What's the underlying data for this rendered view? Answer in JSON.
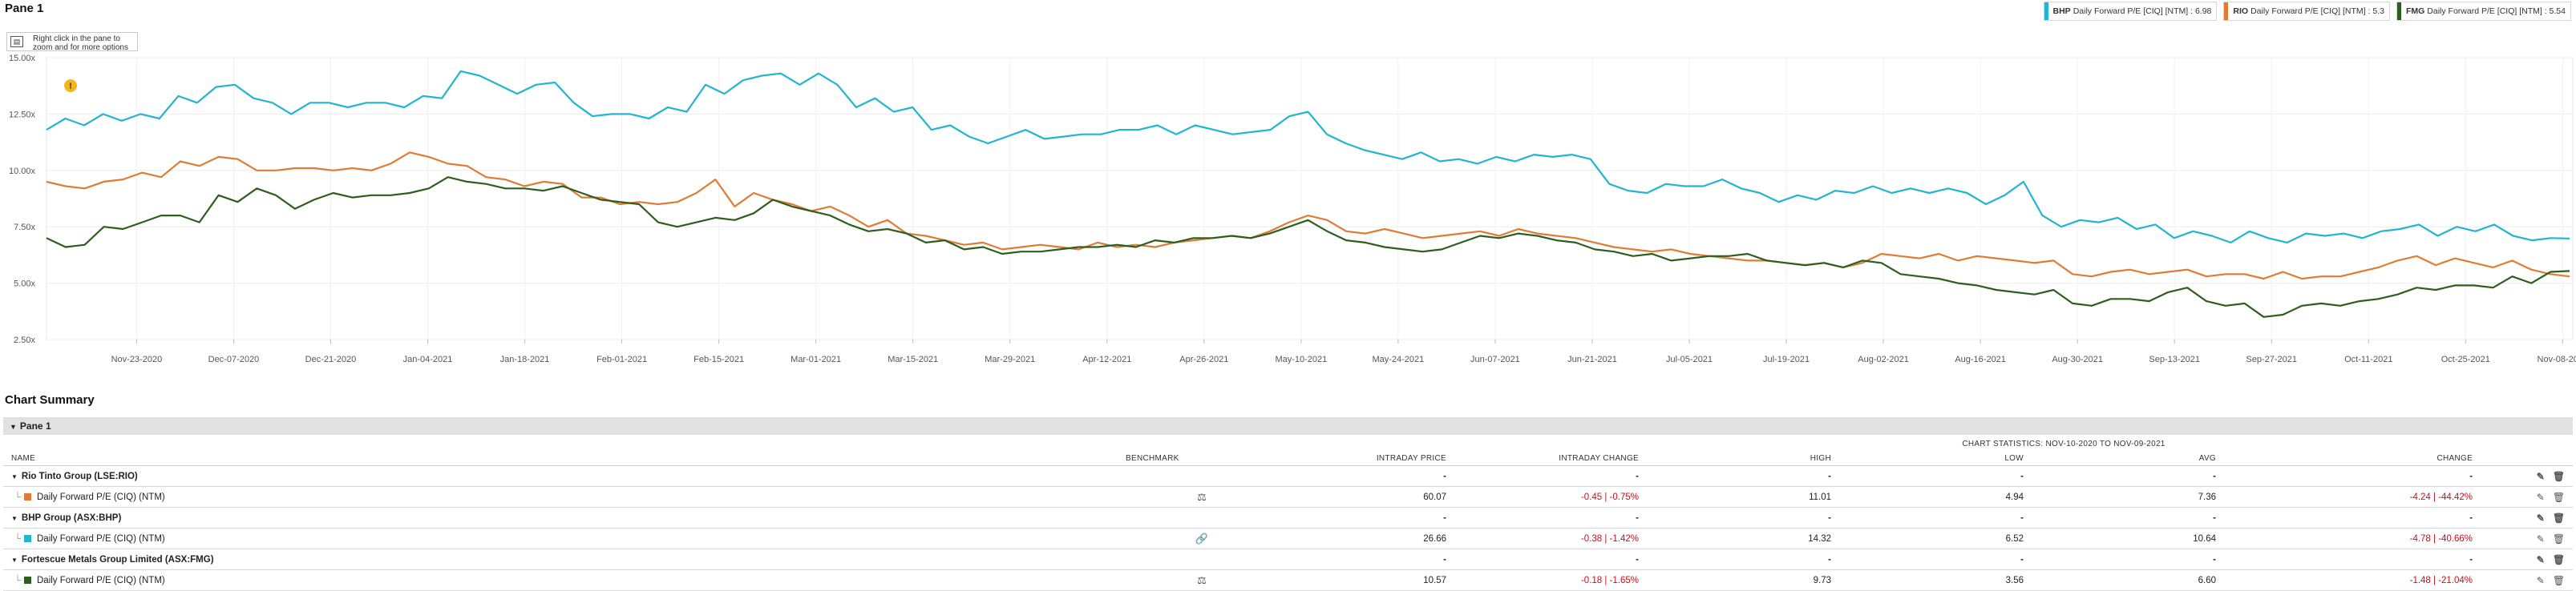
{
  "pane": {
    "title": "Pane 1",
    "hint": "Right click in the pane to zoom and for more options"
  },
  "legend": [
    {
      "ticker": "BHP",
      "label": "Daily Forward P/E [CIQ] [NTM] : 6.98",
      "color": "#22b5d0"
    },
    {
      "ticker": "RIO",
      "label": "Daily Forward P/E [CIQ] [NTM] : 5.3",
      "color": "#e07b34"
    },
    {
      "ticker": "FMG",
      "label": "Daily Forward P/E [CIQ] [NTM] : 5.54",
      "color": "#2d5e1f"
    }
  ],
  "chart_data": {
    "type": "line",
    "ylim": [
      2.5,
      15
    ],
    "yticks": [
      "15.00x",
      "12.50x",
      "10.00x",
      "7.50x",
      "5.00x",
      "2.50x"
    ],
    "ytick_values": [
      15,
      12.5,
      10,
      7.5,
      5,
      2.5
    ],
    "xlabels": [
      "Nov-23-2020",
      "Dec-07-2020",
      "Dec-21-2020",
      "Jan-04-2021",
      "Jan-18-2021",
      "Feb-01-2021",
      "Feb-15-2021",
      "Mar-01-2021",
      "Mar-15-2021",
      "Mar-29-2021",
      "Apr-12-2021",
      "Apr-26-2021",
      "May-10-2021",
      "May-24-2021",
      "Jun-07-2021",
      "Jun-21-2021",
      "Jul-05-2021",
      "Jul-19-2021",
      "Aug-02-2021",
      "Aug-16-2021",
      "Aug-30-2021",
      "Sep-13-2021",
      "Sep-27-2021",
      "Oct-11-2021",
      "Oct-25-2021",
      "Nov-08-2021"
    ],
    "x_start": "Nov-10-2020",
    "x_end": "Nov-09-2021",
    "series": [
      {
        "name": "BHP",
        "color": "#22b5d0",
        "values": [
          11.8,
          12.3,
          12.0,
          12.5,
          12.2,
          12.5,
          12.3,
          13.3,
          13.0,
          13.7,
          13.8,
          13.2,
          13.0,
          12.5,
          13.0,
          13.0,
          12.8,
          13.0,
          13.0,
          12.8,
          13.3,
          13.2,
          14.4,
          14.2,
          13.8,
          13.4,
          13.8,
          13.9,
          13.0,
          12.4,
          12.5,
          12.5,
          12.3,
          12.8,
          12.6,
          13.8,
          13.4,
          14.0,
          14.2,
          14.3,
          13.8,
          14.3,
          13.8,
          12.8,
          13.2,
          12.6,
          12.8,
          11.8,
          12.0,
          11.5,
          11.2,
          11.5,
          11.8,
          11.4,
          11.5,
          11.6,
          11.6,
          11.8,
          11.8,
          12.0,
          11.6,
          12.0,
          11.8,
          11.6,
          11.7,
          11.8,
          12.4,
          12.6,
          11.6,
          11.2,
          10.9,
          10.7,
          10.5,
          10.8,
          10.4,
          10.5,
          10.3,
          10.6,
          10.4,
          10.7,
          10.6,
          10.7,
          10.5,
          9.4,
          9.1,
          9.0,
          9.4,
          9.3,
          9.3,
          9.6,
          9.2,
          9.0,
          8.6,
          8.9,
          8.7,
          9.1,
          9.0,
          9.3,
          9.0,
          9.2,
          9.0,
          9.2,
          9.0,
          8.5,
          8.9,
          9.5,
          8.0,
          7.5,
          7.8,
          7.7,
          7.9,
          7.4,
          7.6,
          7.0,
          7.3,
          7.1,
          6.8,
          7.3,
          7.0,
          6.8,
          7.2,
          7.1,
          7.2,
          7.0,
          7.3,
          7.4,
          7.6,
          7.1,
          7.5,
          7.3,
          7.6,
          7.1,
          6.9,
          7.0,
          6.98
        ]
      },
      {
        "name": "RIO",
        "color": "#e07b34",
        "values": [
          9.5,
          9.3,
          9.2,
          9.5,
          9.6,
          9.9,
          9.7,
          10.4,
          10.2,
          10.6,
          10.5,
          10.0,
          10.0,
          10.1,
          10.1,
          10.0,
          10.1,
          10.0,
          10.3,
          10.8,
          10.6,
          10.3,
          10.2,
          9.7,
          9.6,
          9.3,
          9.5,
          9.4,
          8.8,
          8.8,
          8.5,
          8.6,
          8.5,
          8.6,
          9.0,
          9.6,
          8.4,
          9.0,
          8.7,
          8.5,
          8.2,
          8.4,
          8.0,
          7.5,
          7.8,
          7.2,
          7.1,
          6.9,
          6.7,
          6.8,
          6.5,
          6.6,
          6.7,
          6.6,
          6.5,
          6.8,
          6.6,
          6.7,
          6.6,
          6.8,
          6.9,
          7.0,
          7.1,
          7.0,
          7.3,
          7.7,
          8.0,
          7.8,
          7.3,
          7.2,
          7.4,
          7.2,
          7.0,
          7.1,
          7.2,
          7.3,
          7.1,
          7.4,
          7.2,
          7.1,
          7.0,
          6.8,
          6.6,
          6.5,
          6.4,
          6.5,
          6.3,
          6.2,
          6.1,
          6.0,
          6.0,
          5.9,
          5.8,
          5.9,
          5.7,
          5.9,
          6.3,
          6.2,
          6.1,
          6.3,
          6.0,
          6.2,
          6.1,
          6.0,
          5.9,
          6.0,
          5.4,
          5.3,
          5.5,
          5.6,
          5.4,
          5.5,
          5.6,
          5.3,
          5.4,
          5.4,
          5.2,
          5.5,
          5.2,
          5.3,
          5.3,
          5.5,
          5.7,
          6.0,
          6.2,
          5.8,
          6.1,
          5.9,
          5.7,
          6.0,
          5.6,
          5.4,
          5.3
        ]
      },
      {
        "name": "FMG",
        "color": "#2d5e1f",
        "values": [
          7.0,
          6.6,
          6.7,
          7.5,
          7.4,
          7.7,
          8.0,
          8.0,
          7.7,
          8.9,
          8.6,
          9.2,
          8.9,
          8.3,
          8.7,
          9.0,
          8.8,
          8.9,
          8.9,
          9.0,
          9.2,
          9.7,
          9.5,
          9.4,
          9.2,
          9.2,
          9.1,
          9.3,
          9.0,
          8.7,
          8.6,
          8.5,
          7.7,
          7.5,
          7.7,
          7.9,
          7.8,
          8.1,
          8.7,
          8.4,
          8.2,
          8.0,
          7.6,
          7.3,
          7.4,
          7.2,
          6.8,
          6.9,
          6.5,
          6.6,
          6.3,
          6.4,
          6.4,
          6.5,
          6.6,
          6.6,
          6.7,
          6.6,
          6.9,
          6.8,
          7.0,
          7.0,
          7.1,
          7.0,
          7.2,
          7.5,
          7.8,
          7.3,
          6.9,
          6.8,
          6.6,
          6.5,
          6.4,
          6.5,
          6.8,
          7.1,
          7.0,
          7.2,
          7.1,
          6.9,
          6.8,
          6.5,
          6.4,
          6.2,
          6.3,
          6.0,
          6.1,
          6.2,
          6.2,
          6.3,
          6.0,
          5.9,
          5.8,
          5.9,
          5.7,
          6.0,
          5.9,
          5.4,
          5.3,
          5.2,
          5.0,
          4.9,
          4.7,
          4.6,
          4.5,
          4.7,
          4.1,
          4.0,
          4.3,
          4.3,
          4.2,
          4.6,
          4.8,
          4.2,
          4.0,
          4.1,
          3.5,
          3.6,
          4.0,
          4.1,
          4.0,
          4.2,
          4.3,
          4.5,
          4.8,
          4.7,
          4.9,
          4.9,
          4.8,
          5.3,
          5.0,
          5.5,
          5.54
        ]
      }
    ]
  },
  "summary": {
    "title": "Chart Summary",
    "pane_label": "Pane 1",
    "stats_caption": "CHART STATISTICS: NOV-10-2020 TO NOV-09-2021",
    "columns": {
      "name": "NAME",
      "benchmark": "BENCHMARK",
      "price": "INTRADAY PRICE",
      "change": "INTRADAY CHANGE",
      "high": "HIGH",
      "low": "LOW",
      "avg": "AVG",
      "pchange": "CHANGE"
    },
    "groups": [
      {
        "name": "Rio Tinto Group (LSE:RIO)",
        "dash": "-",
        "item": {
          "label": "Daily Forward P/E (CIQ) (NTM)",
          "color": "#e07b34",
          "benchmark_icon": "scale-icon",
          "price": "60.07",
          "change": "-0.45 | -0.75%",
          "high": "11.01",
          "low": "4.94",
          "avg": "7.36",
          "pchange": "-4.24 | -44.42%"
        }
      },
      {
        "name": "BHP Group (ASX:BHP)",
        "dash": "-",
        "item": {
          "label": "Daily Forward P/E (CIQ) (NTM)",
          "color": "#22b5d0",
          "benchmark_icon": "link-icon",
          "price": "26.66",
          "change": "-0.38 | -1.42%",
          "high": "14.32",
          "low": "6.52",
          "avg": "10.64",
          "pchange": "-4.78 | -40.66%"
        }
      },
      {
        "name": "Fortescue Metals Group Limited (ASX:FMG)",
        "dash": "-",
        "item": {
          "label": "Daily Forward P/E (CIQ) (NTM)",
          "color": "#2d5e1f",
          "benchmark_icon": "scale-icon",
          "price": "10.57",
          "change": "-0.18 | -1.65%",
          "high": "9.73",
          "low": "3.56",
          "avg": "6.60",
          "pchange": "-1.48 | -21.04%"
        }
      }
    ]
  }
}
